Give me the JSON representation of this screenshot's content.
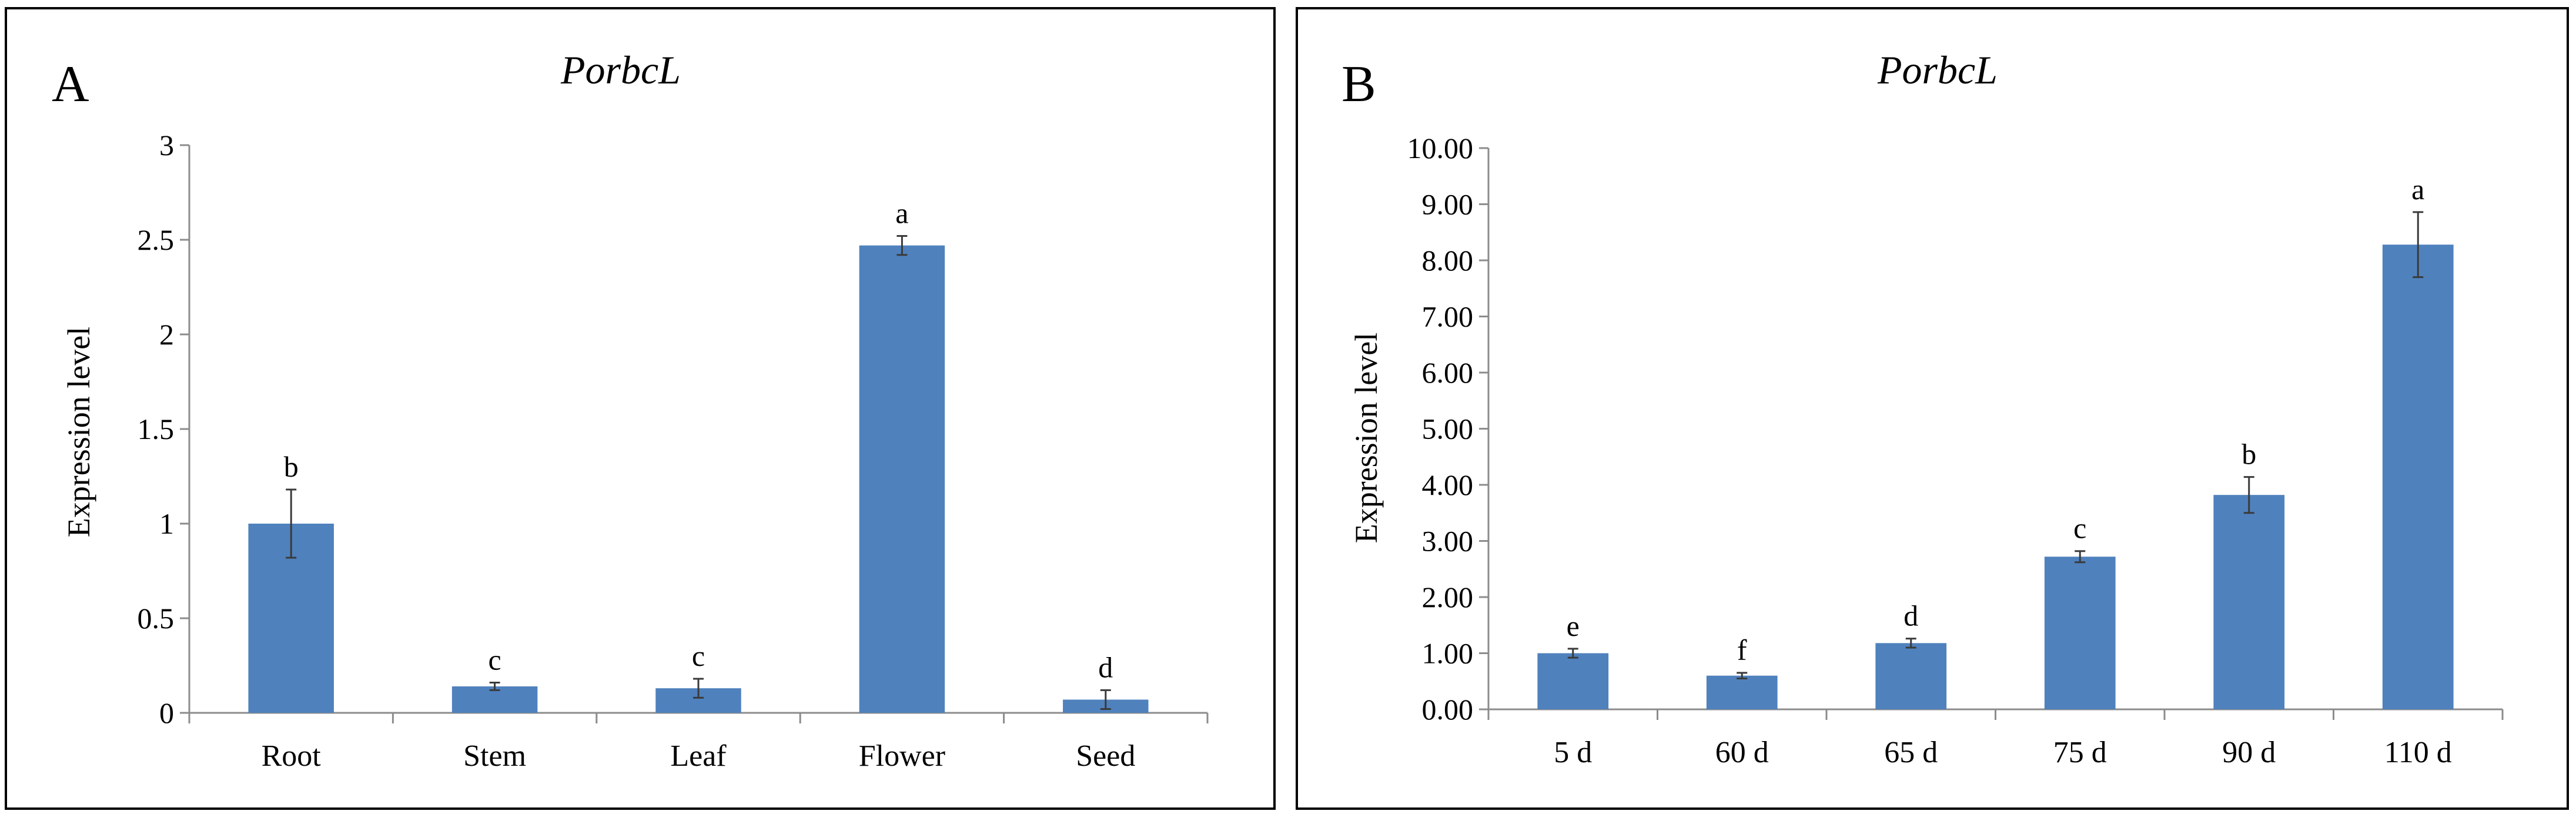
{
  "chart_data": [
    {
      "type": "bar",
      "panel_label": "A",
      "title": "PorbcL",
      "ylabel": "Expression level",
      "xlabel": "",
      "ylim": [
        0,
        3
      ],
      "yticks": [
        "0",
        "0.5",
        "1",
        "1.5",
        "2",
        "2.5",
        "3"
      ],
      "categories": [
        "Root",
        "Stem",
        "Leaf",
        "Flower",
        "Seed"
      ],
      "values": [
        1.0,
        0.14,
        0.13,
        2.47,
        0.07
      ],
      "errors": [
        0.18,
        0.02,
        0.05,
        0.05,
        0.05
      ],
      "significance": [
        "b",
        "c",
        "c",
        "a",
        "d"
      ],
      "bar_color": "#4f81bd"
    },
    {
      "type": "bar",
      "panel_label": "B",
      "title": "PorbcL",
      "ylabel": "Expression level",
      "xlabel": "",
      "ylim": [
        0,
        10
      ],
      "yticks": [
        "0.00",
        "1.00",
        "2.00",
        "3.00",
        "4.00",
        "5.00",
        "6.00",
        "7.00",
        "8.00",
        "9.00",
        "10.00"
      ],
      "categories": [
        "5 d",
        "60 d",
        "65 d",
        "75 d",
        "90 d",
        "110 d"
      ],
      "values": [
        1.0,
        0.6,
        1.18,
        2.72,
        3.82,
        8.28
      ],
      "errors": [
        0.08,
        0.05,
        0.08,
        0.1,
        0.32,
        0.58
      ],
      "significance": [
        "e",
        "f",
        "d",
        "c",
        "b",
        "a"
      ],
      "bar_color": "#4f81bd"
    }
  ]
}
